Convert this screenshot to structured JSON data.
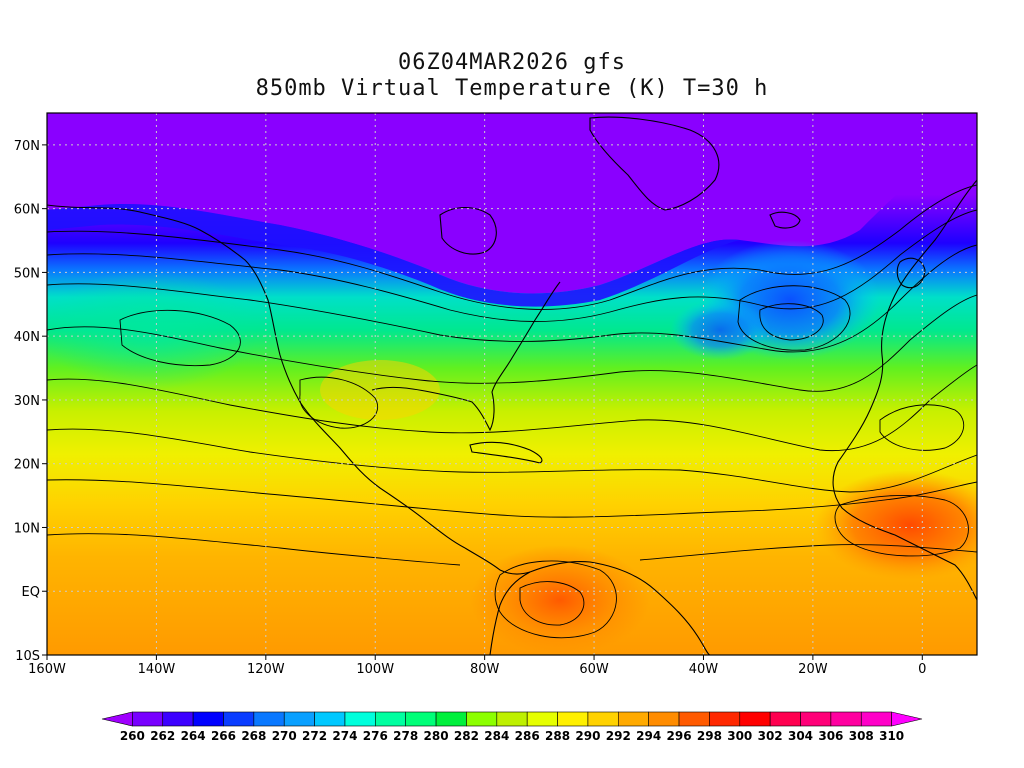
{
  "title": {
    "line1": "06Z04MAR2026 gfs",
    "line2": "850mb Virtual Temperature (K) T=30 h"
  },
  "map": {
    "lon_range": [
      -160,
      10
    ],
    "lat_range": [
      -10,
      75
    ],
    "lon_ticks": [
      {
        "value": -160,
        "label": "160W"
      },
      {
        "value": -140,
        "label": "140W"
      },
      {
        "value": -120,
        "label": "120W"
      },
      {
        "value": -100,
        "label": "100W"
      },
      {
        "value": -80,
        "label": "80W"
      },
      {
        "value": -60,
        "label": "60W"
      },
      {
        "value": -40,
        "label": "40W"
      },
      {
        "value": -20,
        "label": "20W"
      },
      {
        "value": 0,
        "label": "0"
      }
    ],
    "lat_ticks": [
      {
        "value": -10,
        "label": "10S"
      },
      {
        "value": 0,
        "label": "EQ"
      },
      {
        "value": 10,
        "label": "10N"
      },
      {
        "value": 20,
        "label": "20N"
      },
      {
        "value": 30,
        "label": "30N"
      },
      {
        "value": 40,
        "label": "40N"
      },
      {
        "value": 50,
        "label": "50N"
      },
      {
        "value": 60,
        "label": "60N"
      },
      {
        "value": 70,
        "label": "70N"
      }
    ],
    "grid": true
  },
  "colorbar": {
    "labels": [
      "260",
      "262",
      "264",
      "266",
      "268",
      "270",
      "272",
      "274",
      "276",
      "278",
      "280",
      "282",
      "284",
      "286",
      "288",
      "290",
      "292",
      "294",
      "296",
      "298",
      "300",
      "302",
      "304",
      "306",
      "308",
      "310"
    ],
    "colors": [
      "#a000ff",
      "#7800ff",
      "#3c00ff",
      "#0000ff",
      "#0a3cff",
      "#0a78ff",
      "#0aa0ff",
      "#00c8ff",
      "#00ffdc",
      "#00ffa0",
      "#00ff78",
      "#00f03c",
      "#8cff00",
      "#bef000",
      "#e6ff00",
      "#fff000",
      "#ffd200",
      "#ffaa00",
      "#ff8c00",
      "#ff5a00",
      "#ff2800",
      "#ff0000",
      "#ff0050",
      "#ff0078",
      "#ff00a0",
      "#ff00c8",
      "#ff00ff"
    ]
  }
}
